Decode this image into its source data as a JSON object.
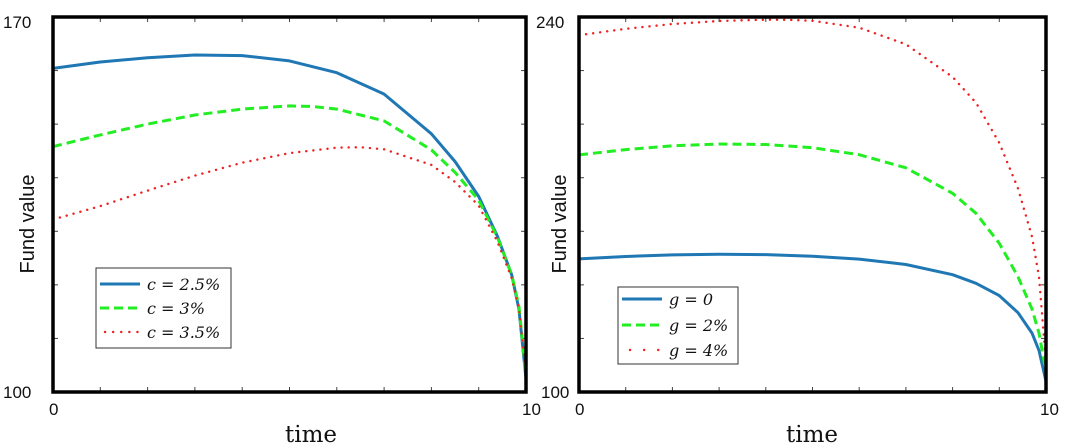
{
  "chart_data": [
    {
      "type": "line",
      "xlabel": "time",
      "ylabel": "Fund value",
      "xlim": [
        0,
        10
      ],
      "ylim": [
        100,
        170
      ],
      "x_tick_labels": [
        "0",
        "10"
      ],
      "y_tick_labels": [
        "100",
        "170"
      ],
      "legend_position": "bottom-left",
      "grid": false,
      "series": [
        {
          "name": "c = 2.5%",
          "style": "solid",
          "color": "#1f77b4",
          "x": [
            0,
            1,
            2,
            3,
            4,
            5,
            6,
            7,
            8,
            8.5,
            9,
            9.4,
            9.7,
            9.85,
            10
          ],
          "y": [
            160.4,
            161.6,
            162.4,
            162.9,
            162.8,
            161.8,
            159.6,
            155.6,
            148.2,
            143.0,
            136.5,
            129.0,
            121.8,
            115.5,
            102.5
          ]
        },
        {
          "name": "c = 3%",
          "style": "dashed",
          "color": "#22ee22",
          "x": [
            0,
            1,
            2,
            3,
            4,
            5,
            5.5,
            6,
            7,
            8,
            8.5,
            9,
            9.4,
            9.7,
            9.85,
            10
          ],
          "y": [
            145.8,
            148.0,
            150.0,
            151.7,
            152.8,
            153.4,
            153.3,
            152.8,
            150.6,
            145.2,
            141.0,
            135.8,
            128.8,
            121.8,
            116.0,
            103.0
          ]
        },
        {
          "name": "c = 3.5%",
          "style": "dotted",
          "color": "#ee2222",
          "x": [
            0,
            1,
            2,
            3,
            4,
            5,
            6,
            6.5,
            7,
            8,
            8.5,
            9,
            9.4,
            9.7,
            9.85,
            10
          ],
          "y": [
            132.2,
            134.7,
            137.6,
            140.4,
            142.8,
            144.6,
            145.6,
            145.7,
            145.3,
            142.4,
            139.2,
            134.8,
            128.0,
            121.2,
            115.6,
            103.5
          ]
        }
      ]
    },
    {
      "type": "line",
      "xlabel": "time",
      "ylabel": "Fund value",
      "xlim": [
        0,
        10
      ],
      "ylim": [
        100,
        240
      ],
      "x_tick_labels": [
        "0",
        "10"
      ],
      "y_tick_labels": [
        "100",
        "240"
      ],
      "legend_position": "bottom-left",
      "grid": false,
      "series": [
        {
          "name": "g = 0",
          "style": "solid",
          "color": "#1f77b4",
          "x": [
            0,
            1,
            2,
            3,
            4,
            5,
            6,
            7,
            8,
            8.5,
            9,
            9.4,
            9.7,
            9.85,
            10
          ],
          "y": [
            149.7,
            150.6,
            151.2,
            151.4,
            151.3,
            150.7,
            149.6,
            147.6,
            143.8,
            140.6,
            136.0,
            129.6,
            122.0,
            115.5,
            104.0
          ]
        },
        {
          "name": "g = 2%",
          "style": "dashed",
          "color": "#22ee22",
          "x": [
            0,
            1,
            2,
            3,
            4,
            5,
            6,
            7,
            8,
            8.5,
            9,
            9.4,
            9.7,
            9.85,
            10
          ],
          "y": [
            188.5,
            190.5,
            191.9,
            192.6,
            192.4,
            191.2,
            188.6,
            183.7,
            174.2,
            166.7,
            155.5,
            143.0,
            131.0,
            122.0,
            107.5
          ]
        },
        {
          "name": "g = 4%",
          "style": "dotted",
          "color": "#ee2222",
          "x": [
            0,
            1,
            2,
            3,
            4,
            4.5,
            5,
            6,
            7,
            8,
            8.5,
            9,
            9.4,
            9.7,
            9.85,
            10
          ],
          "y": [
            233.2,
            235.6,
            237.4,
            238.5,
            239.0,
            238.9,
            238.6,
            236.0,
            229.8,
            217.6,
            208.0,
            193.0,
            176.0,
            158.0,
            143.0,
            111.0
          ]
        }
      ]
    }
  ]
}
